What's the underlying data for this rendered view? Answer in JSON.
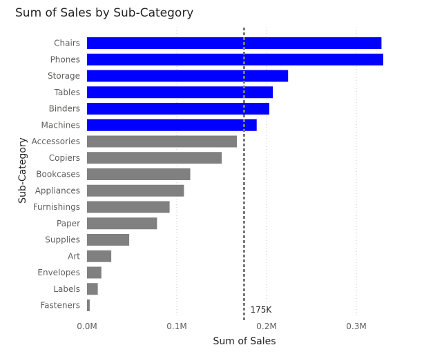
{
  "chart_data": {
    "type": "bar",
    "orientation": "horizontal",
    "title": "Sum of Sales by Sub-Category",
    "xlabel": "Sum of Sales",
    "ylabel": "Sub-Category",
    "xlim": [
      0,
      0.34
    ],
    "x_unit": "M",
    "x_ticks": [
      0,
      0.1,
      0.2,
      0.3
    ],
    "x_tick_labels": [
      "0.0M",
      "0.1M",
      "0.2M",
      "0.3M"
    ],
    "grid": true,
    "categories": [
      "Chairs",
      "Phones",
      "Storage",
      "Tables",
      "Binders",
      "Machines",
      "Accessories",
      "Copiers",
      "Bookcases",
      "Appliances",
      "Furnishings",
      "Paper",
      "Supplies",
      "Art",
      "Envelopes",
      "Labels",
      "Fasteners"
    ],
    "values": [
      0.328,
      0.33,
      0.224,
      0.207,
      0.203,
      0.189,
      0.167,
      0.15,
      0.115,
      0.108,
      0.092,
      0.078,
      0.047,
      0.027,
      0.016,
      0.012,
      0.003
    ],
    "highlight_color": "#0000ff",
    "base_color": "#808080",
    "highlight_rule": "value above reference line",
    "reference_line": {
      "value": 0.175,
      "label": "175K",
      "style": "dashed",
      "color": "#7a7a7a"
    }
  }
}
